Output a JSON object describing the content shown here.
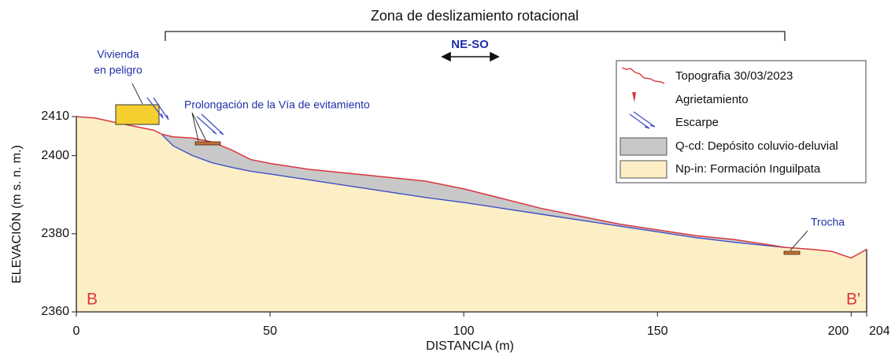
{
  "chart_data": {
    "type": "cross-section",
    "annotations": [
      "Zona de deslizamiento rotacional",
      "NE-SO",
      "Vivienda",
      "en peligro",
      "Prolongación de la Vía de evitamiento",
      "Trocha",
      "B",
      "B'"
    ],
    "xlabel": "DISTANCIA (m)",
    "ylabel": "ELEVACIÓN (m s. n. m.)",
    "x": [
      0,
      5,
      10,
      15,
      20,
      22,
      25,
      30,
      35,
      40,
      45,
      50,
      60,
      70,
      80,
      90,
      100,
      110,
      120,
      130,
      140,
      150,
      160,
      170,
      180,
      183,
      190,
      195,
      200,
      204
    ],
    "series": [
      {
        "name": "Topografia 30/03/2023",
        "color": "#d8363f",
        "values": [
          2410,
          2409.6,
          2408.5,
          2407.5,
          2406.5,
          2405.5,
          2404.8,
          2404.5,
          2403.5,
          2401.5,
          2399,
          2398,
          2396.5,
          2395.5,
          2394.5,
          2393.5,
          2391.5,
          2389,
          2386.5,
          2384.5,
          2382.5,
          2381,
          2379.5,
          2378.5,
          2377,
          2376.5,
          2376,
          2375.5,
          2373.8,
          2376
        ]
      },
      {
        "name": "Q-cd: Depósito coluvio-deluvial",
        "color": "#c8c8c8",
        "edge_color": "#3f4fc8",
        "values": [
          null,
          null,
          null,
          null,
          null,
          2405.5,
          2402.5,
          2400,
          2398.2,
          2397,
          2396,
          2395.3,
          2393.8,
          2392.3,
          2390.8,
          2389.3,
          2388,
          2386.5,
          2385,
          2383.5,
          2382,
          2380.5,
          2379,
          2377.8,
          2376.8,
          2376.5,
          null,
          null,
          null,
          null
        ]
      },
      {
        "name": "Np-in: Formación Inguilpata",
        "color": "#fcefc6"
      }
    ],
    "legend_extra": [
      "Agrietamiento",
      "Escarpe"
    ],
    "xlim": [
      0,
      204
    ],
    "ylim": [
      2360,
      2410
    ],
    "xticks": [
      0,
      50,
      100,
      150,
      200,
      204
    ],
    "yticks": [
      2360,
      2380,
      2400,
      2410
    ],
    "grid": false
  }
}
